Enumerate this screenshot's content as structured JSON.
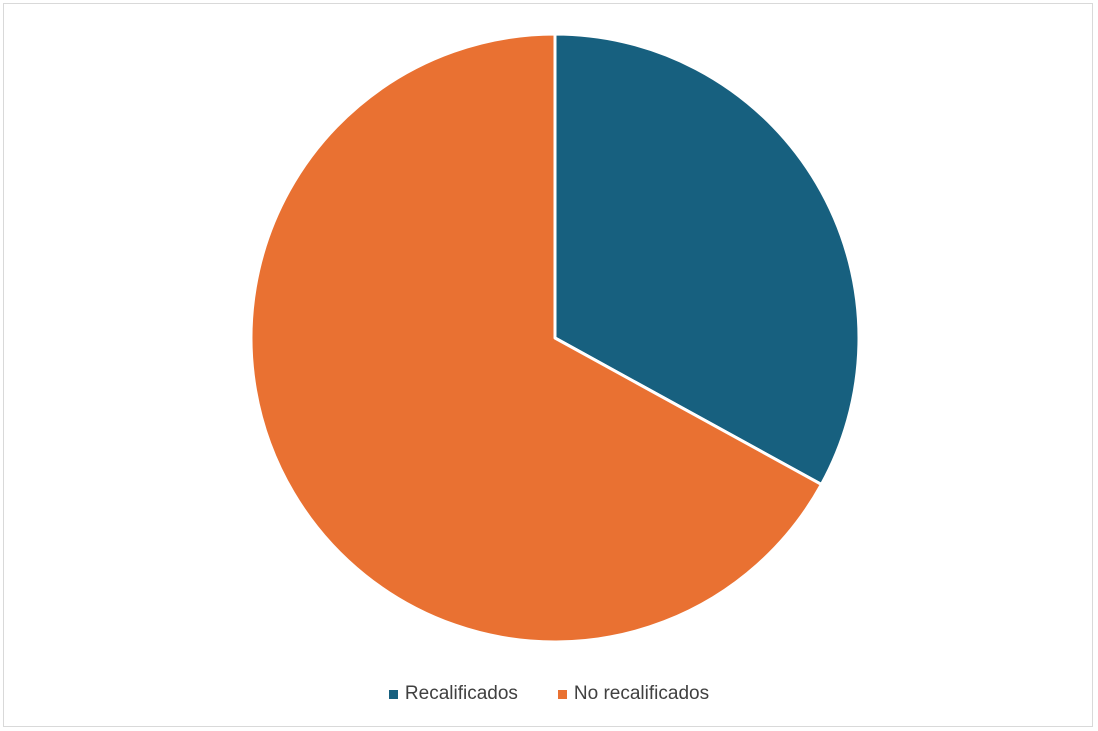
{
  "chart_data": {
    "type": "pie",
    "title": "",
    "slices": [
      {
        "label": "Recalificados",
        "value": 33,
        "color": "#17607f"
      },
      {
        "label": "No recalificados",
        "value": 67,
        "color": "#e97132"
      }
    ],
    "start_angle_deg": 0,
    "direction": "clockwise",
    "legend_position": "bottom",
    "slice_border_color": "#ffffff"
  }
}
